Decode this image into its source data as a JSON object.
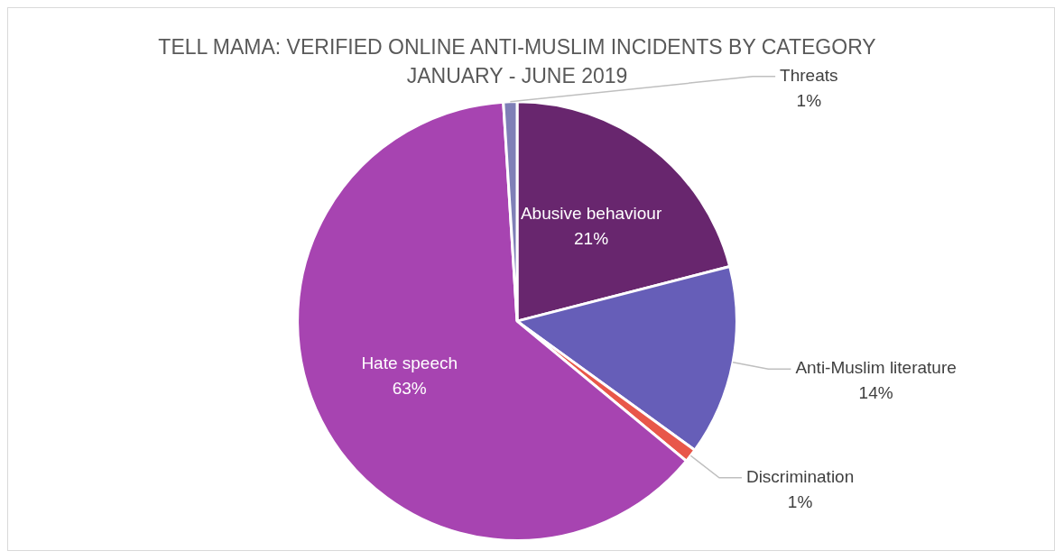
{
  "chart_data": {
    "type": "pie",
    "title": "TELL MAMA: VERIFIED ONLINE ANTI-MUSLIM INCIDENTS BY CATEGORY",
    "subtitle": "JANUARY - JUNE 2019",
    "categories": [
      "Abusive behaviour",
      "Anti-Muslim literature",
      "Discrimination",
      "Hate speech",
      "Threats"
    ],
    "values": [
      21,
      14,
      1,
      63,
      1
    ],
    "colors": [
      "#68266e",
      "#665eb8",
      "#e8574a",
      "#a744b1",
      "#7f7fb7"
    ],
    "value_labels": [
      "21%",
      "14%",
      "1%",
      "63%",
      "1%"
    ],
    "legend": false
  }
}
